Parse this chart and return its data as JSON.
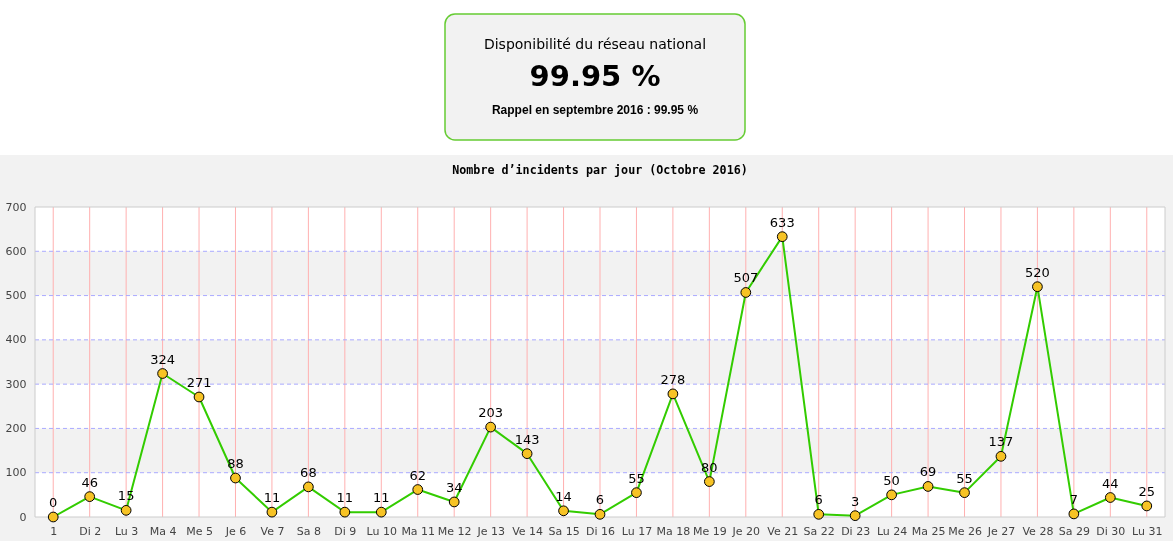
{
  "chart_data": [
    {
      "type": "other",
      "title": "Disponibilité du réseau national",
      "annotations": [
        "99.95 %",
        "Rappel en septembre 2016 : 99.95 %"
      ]
    },
    {
      "type": "line",
      "title": "Nombre d’incidents par jour (Octobre 2016)",
      "categories": [
        "1",
        "Di 2",
        "Lu 3",
        "Ma 4",
        "Me 5",
        "Je 6",
        "Ve 7",
        "Sa 8",
        "Di 9",
        "Lu 10",
        "Ma 11",
        "Me 12",
        "Je 13",
        "Ve 14",
        "Sa 15",
        "Di 16",
        "Lu 17",
        "Ma 18",
        "Me 19",
        "Je 20",
        "Ve 21",
        "Sa 22",
        "Di 23",
        "Lu 24",
        "Ma 25",
        "Me 26",
        "Je 27",
        "Ve 28",
        "Sa 29",
        "Di 30",
        "Lu 31"
      ],
      "series": [
        {
          "color": "#33cc00",
          "values": [
            0,
            46,
            15,
            324,
            271,
            88,
            11,
            68,
            11,
            11,
            62,
            34,
            203,
            143,
            14,
            6,
            55,
            278,
            80,
            507,
            633,
            6,
            3,
            50,
            69,
            55,
            137,
            520,
            7,
            44,
            25
          ]
        }
      ],
      "ylim": [
        0,
        700
      ],
      "yticks": [
        0,
        100,
        200,
        300,
        400,
        500,
        600,
        700
      ],
      "grid": true,
      "marker": "circle",
      "data_labels": true,
      "bands": [
        {
          "axis": "y",
          "from": 100,
          "to": 200,
          "color": "#f2f2f2"
        },
        {
          "axis": "y",
          "from": 300,
          "to": 400,
          "color": "#f2f2f2"
        },
        {
          "axis": "y",
          "from": 500,
          "to": 600,
          "color": "#f2f2f2"
        }
      ]
    }
  ]
}
